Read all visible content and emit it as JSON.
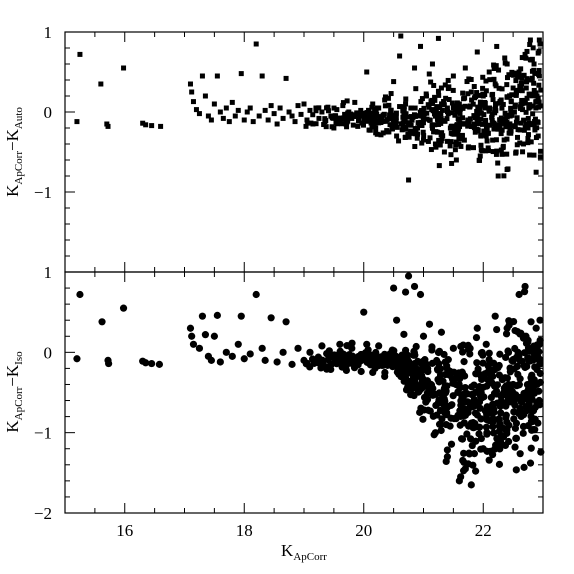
{
  "chart_data": [
    {
      "type": "scatter",
      "panel": "top",
      "marker": "square",
      "xlabel": {
        "base": "K",
        "sub": "ApCorr"
      },
      "ylabel": {
        "left_base": "K",
        "left_sub": "ApCorr",
        "minus": "−",
        "right_base": "K",
        "right_sub": "Auto"
      },
      "xlim": [
        15.0,
        23.0
      ],
      "ylim": [
        -2.0,
        1.0
      ],
      "yticks": [
        {
          "value": 1,
          "label": "1"
        },
        {
          "value": 0,
          "label": "0"
        },
        {
          "value": -1,
          "label": "−1"
        }
      ],
      "grid": false,
      "points": [
        [
          15.2,
          -0.12
        ],
        [
          15.25,
          0.72
        ],
        [
          15.6,
          0.35
        ],
        [
          15.7,
          -0.15
        ],
        [
          15.72,
          -0.18
        ],
        [
          15.98,
          0.55
        ],
        [
          16.3,
          -0.14
        ],
        [
          16.35,
          -0.16
        ],
        [
          16.45,
          -0.17
        ],
        [
          16.6,
          -0.18
        ],
        [
          17.1,
          0.35
        ],
        [
          17.12,
          0.25
        ],
        [
          17.15,
          0.13
        ],
        [
          17.2,
          0.03
        ],
        [
          17.25,
          -0.02
        ],
        [
          17.3,
          0.45
        ],
        [
          17.35,
          0.2
        ],
        [
          17.4,
          -0.05
        ],
        [
          17.45,
          -0.1
        ],
        [
          17.5,
          0.1
        ],
        [
          17.55,
          0.45
        ],
        [
          17.6,
          0.0
        ],
        [
          17.65,
          -0.08
        ],
        [
          17.7,
          0.05
        ],
        [
          17.75,
          -0.12
        ],
        [
          17.8,
          0.12
        ],
        [
          17.85,
          -0.05
        ],
        [
          17.9,
          0.02
        ],
        [
          17.95,
          0.48
        ],
        [
          18.0,
          -0.1
        ],
        [
          18.05,
          0.0
        ],
        [
          18.1,
          0.05
        ],
        [
          18.15,
          -0.12
        ],
        [
          18.2,
          0.85
        ],
        [
          18.25,
          -0.05
        ],
        [
          18.3,
          0.45
        ],
        [
          18.35,
          0.02
        ],
        [
          18.4,
          -0.1
        ],
        [
          18.45,
          0.08
        ],
        [
          18.5,
          -0.02
        ],
        [
          18.55,
          -0.15
        ],
        [
          18.6,
          0.05
        ],
        [
          18.65,
          -0.08
        ],
        [
          18.7,
          0.42
        ],
        [
          18.75,
          0.0
        ],
        [
          18.8,
          -0.05
        ],
        [
          18.85,
          -0.12
        ],
        [
          18.9,
          0.08
        ],
        [
          18.95,
          -0.03
        ],
        [
          19.0,
          0.1
        ],
        [
          19.05,
          -0.1
        ],
        [
          19.1,
          0.02
        ],
        [
          19.15,
          -0.15
        ],
        [
          19.2,
          0.05
        ],
        [
          19.25,
          -0.08
        ],
        [
          19.3,
          0.0
        ],
        [
          19.35,
          -0.12
        ],
        [
          19.4,
          0.06
        ],
        [
          19.45,
          -0.05
        ],
        [
          19.5,
          -0.2
        ],
        [
          19.55,
          0.03
        ],
        [
          19.6,
          -0.1
        ],
        [
          19.65,
          0.08
        ],
        [
          19.7,
          -0.15
        ],
        [
          19.75,
          0.0
        ],
        [
          19.8,
          -0.08
        ],
        [
          19.85,
          0.12
        ],
        [
          19.9,
          -0.18
        ],
        [
          19.95,
          0.02
        ],
        [
          20.0,
          -0.1
        ],
        [
          20.05,
          0.5
        ],
        [
          20.1,
          -0.05
        ],
        [
          20.15,
          0.1
        ],
        [
          20.2,
          -0.2
        ],
        [
          20.25,
          0.05
        ],
        [
          20.3,
          -0.12
        ],
        [
          20.35,
          0.15
        ],
        [
          20.4,
          -0.25
        ],
        [
          20.45,
          0.02
        ],
        [
          20.5,
          0.38
        ],
        [
          20.55,
          -0.3
        ],
        [
          20.6,
          0.7
        ],
        [
          20.62,
          0.95
        ],
        [
          20.65,
          -0.15
        ],
        [
          20.7,
          0.1
        ],
        [
          20.75,
          -0.85
        ],
        [
          20.8,
          0.05
        ],
        [
          20.85,
          0.55
        ],
        [
          20.9,
          -0.2
        ],
        [
          20.95,
          0.82
        ],
        [
          21.0,
          -0.35
        ],
        [
          21.05,
          0.2
        ],
        [
          21.1,
          -0.1
        ],
        [
          21.15,
          0.6
        ],
        [
          21.2,
          -0.4
        ],
        [
          21.25,
          0.92
        ],
        [
          21.3,
          0.3
        ],
        [
          21.35,
          -0.5
        ],
        [
          21.4,
          0.05
        ],
        [
          21.45,
          -0.2
        ],
        [
          21.5,
          0.45
        ],
        [
          21.55,
          -0.6
        ],
        [
          21.6,
          0.1
        ],
        [
          21.65,
          -0.3
        ],
        [
          21.7,
          0.55
        ],
        [
          21.75,
          -0.45
        ],
        [
          21.8,
          0.25
        ],
        [
          21.85,
          -0.15
        ],
        [
          21.9,
          0.75
        ],
        [
          21.95,
          -0.55
        ],
        [
          22.0,
          0.2
        ],
        [
          22.05,
          -0.3
        ],
        [
          22.1,
          0.5
        ],
        [
          22.15,
          -0.1
        ],
        [
          22.2,
          0.35
        ],
        [
          22.25,
          -0.8
        ],
        [
          22.3,
          0.15
        ],
        [
          22.35,
          -0.35
        ],
        [
          22.4,
          0.6
        ],
        [
          22.45,
          -0.05
        ],
        [
          22.5,
          0.3
        ],
        [
          22.55,
          -0.5
        ],
        [
          22.6,
          0.45
        ],
        [
          22.65,
          0.1
        ],
        [
          22.7,
          0.72
        ],
        [
          22.75,
          -0.2
        ],
        [
          22.8,
          0.4
        ],
        [
          22.85,
          0.6
        ],
        [
          22.9,
          0.2
        ],
        [
          22.95,
          0.85
        ],
        [
          22.97,
          0.55
        ],
        [
          22.92,
          -0.3
        ],
        [
          22.88,
          0.05
        ],
        [
          22.8,
          0.65
        ],
        [
          22.72,
          0.3
        ],
        [
          22.6,
          0.5
        ]
      ],
      "dense_band": {
        "x_min": 19.0,
        "x_max": 23.0,
        "n": 600,
        "seed": 7
      }
    },
    {
      "type": "scatter",
      "panel": "bottom",
      "marker": "circle",
      "xlabel": {
        "base": "K",
        "sub": "ApCorr"
      },
      "ylabel": {
        "left_base": "K",
        "left_sub": "ApCorr",
        "minus": "−",
        "right_base": "K",
        "right_sub": "Iso"
      },
      "xlim": [
        15.0,
        23.0
      ],
      "ylim": [
        -2.0,
        1.0
      ],
      "xticks": [
        {
          "value": 16,
          "label": "16"
        },
        {
          "value": 18,
          "label": "18"
        },
        {
          "value": 20,
          "label": "20"
        },
        {
          "value": 22,
          "label": "22"
        }
      ],
      "yticks": [
        {
          "value": 1,
          "label": "1"
        },
        {
          "value": 0,
          "label": "0"
        },
        {
          "value": -1,
          "label": "−1"
        },
        {
          "value": -2,
          "label": "−2"
        }
      ],
      "grid": false,
      "points": [
        [
          15.2,
          -0.08
        ],
        [
          15.25,
          0.72
        ],
        [
          15.62,
          0.38
        ],
        [
          15.72,
          -0.1
        ],
        [
          15.73,
          -0.14
        ],
        [
          15.98,
          0.55
        ],
        [
          16.3,
          -0.11
        ],
        [
          16.35,
          -0.13
        ],
        [
          16.45,
          -0.14
        ],
        [
          16.58,
          -0.15
        ],
        [
          17.1,
          0.3
        ],
        [
          17.12,
          0.2
        ],
        [
          17.15,
          0.1
        ],
        [
          17.25,
          0.05
        ],
        [
          17.3,
          0.45
        ],
        [
          17.35,
          0.22
        ],
        [
          17.4,
          -0.05
        ],
        [
          17.45,
          -0.1
        ],
        [
          17.5,
          0.2
        ],
        [
          17.55,
          0.46
        ],
        [
          17.6,
          -0.12
        ],
        [
          17.7,
          0.0
        ],
        [
          17.8,
          -0.05
        ],
        [
          17.9,
          0.1
        ],
        [
          17.95,
          0.45
        ],
        [
          18.0,
          -0.08
        ],
        [
          18.1,
          -0.02
        ],
        [
          18.2,
          0.72
        ],
        [
          18.3,
          0.05
        ],
        [
          18.35,
          -0.1
        ],
        [
          18.45,
          0.43
        ],
        [
          18.55,
          -0.12
        ],
        [
          18.65,
          0.0
        ],
        [
          18.7,
          0.38
        ],
        [
          18.8,
          -0.15
        ],
        [
          18.9,
          0.05
        ],
        [
          19.0,
          -0.1
        ],
        [
          19.1,
          0.0
        ],
        [
          19.2,
          -0.12
        ],
        [
          19.3,
          0.08
        ],
        [
          19.4,
          -0.18
        ],
        [
          19.5,
          -0.05
        ],
        [
          19.6,
          0.1
        ],
        [
          19.7,
          -0.2
        ],
        [
          19.8,
          0.05
        ],
        [
          19.9,
          -0.15
        ],
        [
          20.0,
          0.5
        ],
        [
          20.05,
          0.1
        ],
        [
          20.15,
          -0.25
        ],
        [
          20.25,
          0.08
        ],
        [
          20.35,
          -0.3
        ],
        [
          20.5,
          0.8
        ],
        [
          20.55,
          0.4
        ],
        [
          20.7,
          0.75
        ],
        [
          20.75,
          0.95
        ],
        [
          20.85,
          0.82
        ],
        [
          20.95,
          0.72
        ],
        [
          21.0,
          0.2
        ],
        [
          21.05,
          -0.6
        ],
        [
          21.1,
          0.35
        ],
        [
          21.2,
          -1.0
        ],
        [
          21.3,
          0.25
        ],
        [
          21.4,
          -1.3
        ],
        [
          21.5,
          0.05
        ],
        [
          21.6,
          -1.6
        ],
        [
          21.7,
          -1.45
        ],
        [
          21.8,
          -1.65
        ],
        [
          21.9,
          0.3
        ],
        [
          22.0,
          -1.2
        ],
        [
          22.05,
          0.1
        ],
        [
          22.1,
          -0.85
        ],
        [
          22.2,
          0.45
        ],
        [
          22.3,
          -0.55
        ],
        [
          22.4,
          0.3
        ],
        [
          22.5,
          -0.4
        ],
        [
          22.6,
          0.72
        ],
        [
          22.7,
          0.82
        ],
        [
          22.75,
          0.15
        ],
        [
          22.8,
          0.38
        ],
        [
          22.9,
          0.05
        ],
        [
          22.95,
          0.4
        ]
      ],
      "dense_band": {
        "x_min": 19.0,
        "x_max": 23.0,
        "n": 700,
        "seed": 11
      }
    }
  ]
}
